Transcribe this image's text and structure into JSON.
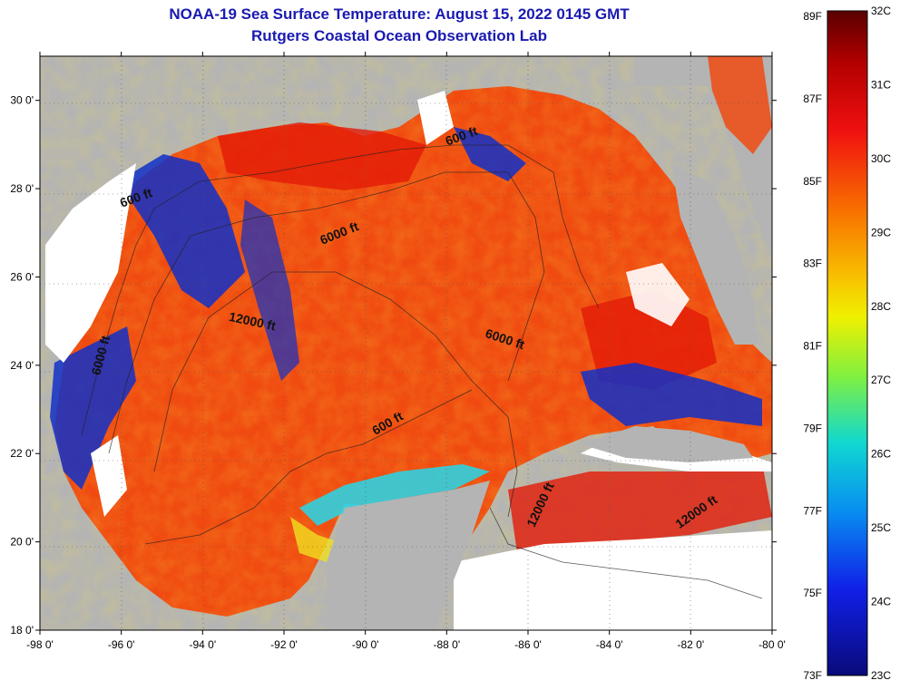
{
  "title": "NOAA-19 Sea Surface Temperature:  August 15, 2022 0145 GMT",
  "subtitle": "Rutgers Coastal Ocean Observation Lab",
  "map": {
    "lon_range": [
      -98,
      -80
    ],
    "lat_range": [
      18,
      31
    ],
    "lon_ticks": [
      {
        "value": -98,
        "label": "-98 0'"
      },
      {
        "value": -96,
        "label": "-96 0'"
      },
      {
        "value": -94,
        "label": "-94 0'"
      },
      {
        "value": -92,
        "label": "-92 0'"
      },
      {
        "value": -90,
        "label": "-90 0'"
      },
      {
        "value": -88,
        "label": "-88 0'"
      },
      {
        "value": -86,
        "label": "-86 0'"
      },
      {
        "value": -84,
        "label": "-84 0'"
      },
      {
        "value": -82,
        "label": "-82 0'"
      },
      {
        "value": -80,
        "label": "-80 0'"
      }
    ],
    "lat_ticks": [
      {
        "value": 18,
        "label": "18 0'"
      },
      {
        "value": 20,
        "label": "20 0'"
      },
      {
        "value": 22,
        "label": "22 0'"
      },
      {
        "value": 24,
        "label": "24 0'"
      },
      {
        "value": 26,
        "label": "26 0'"
      },
      {
        "value": 28,
        "label": "28 0'"
      },
      {
        "value": 30,
        "label": "30 0'"
      }
    ],
    "contour_labels": [
      {
        "text": "600 ft",
        "lon": -87.6,
        "lat": 29.1,
        "angle": -20
      },
      {
        "text": "600 ft",
        "lon": -95.6,
        "lat": 27.7,
        "angle": -20
      },
      {
        "text": "6000 ft",
        "lon": -90.6,
        "lat": 26.9,
        "angle": -22
      },
      {
        "text": "12000 ft",
        "lon": -92.8,
        "lat": 24.9,
        "angle": 12
      },
      {
        "text": "6000 ft",
        "lon": -86.6,
        "lat": 24.5,
        "angle": 18
      },
      {
        "text": "6000 ft",
        "lon": -96.4,
        "lat": 24.2,
        "angle": -75
      },
      {
        "text": "600 ft",
        "lon": -89.4,
        "lat": 22.6,
        "angle": -30
      },
      {
        "text": "12000 ft",
        "lon": -85.6,
        "lat": 20.8,
        "angle": -65
      },
      {
        "text": "12000 ft",
        "lon": -81.8,
        "lat": 20.6,
        "angle": -35
      }
    ],
    "colors": {
      "land": "#b4b4b4",
      "cloud": "#ffffff",
      "warm": "#f04a10",
      "hot": "#e81c08",
      "cool": "#1030c8",
      "cyan": "#30d0e0"
    }
  },
  "colorbar": {
    "f_labels": [
      "89F",
      "87F",
      "85F",
      "83F",
      "81F",
      "79F",
      "77F",
      "75F",
      "73F"
    ],
    "c_labels": [
      "32C",
      "31C",
      "30C",
      "29C",
      "28C",
      "27C",
      "26C",
      "25C",
      "24C",
      "23C"
    ]
  }
}
